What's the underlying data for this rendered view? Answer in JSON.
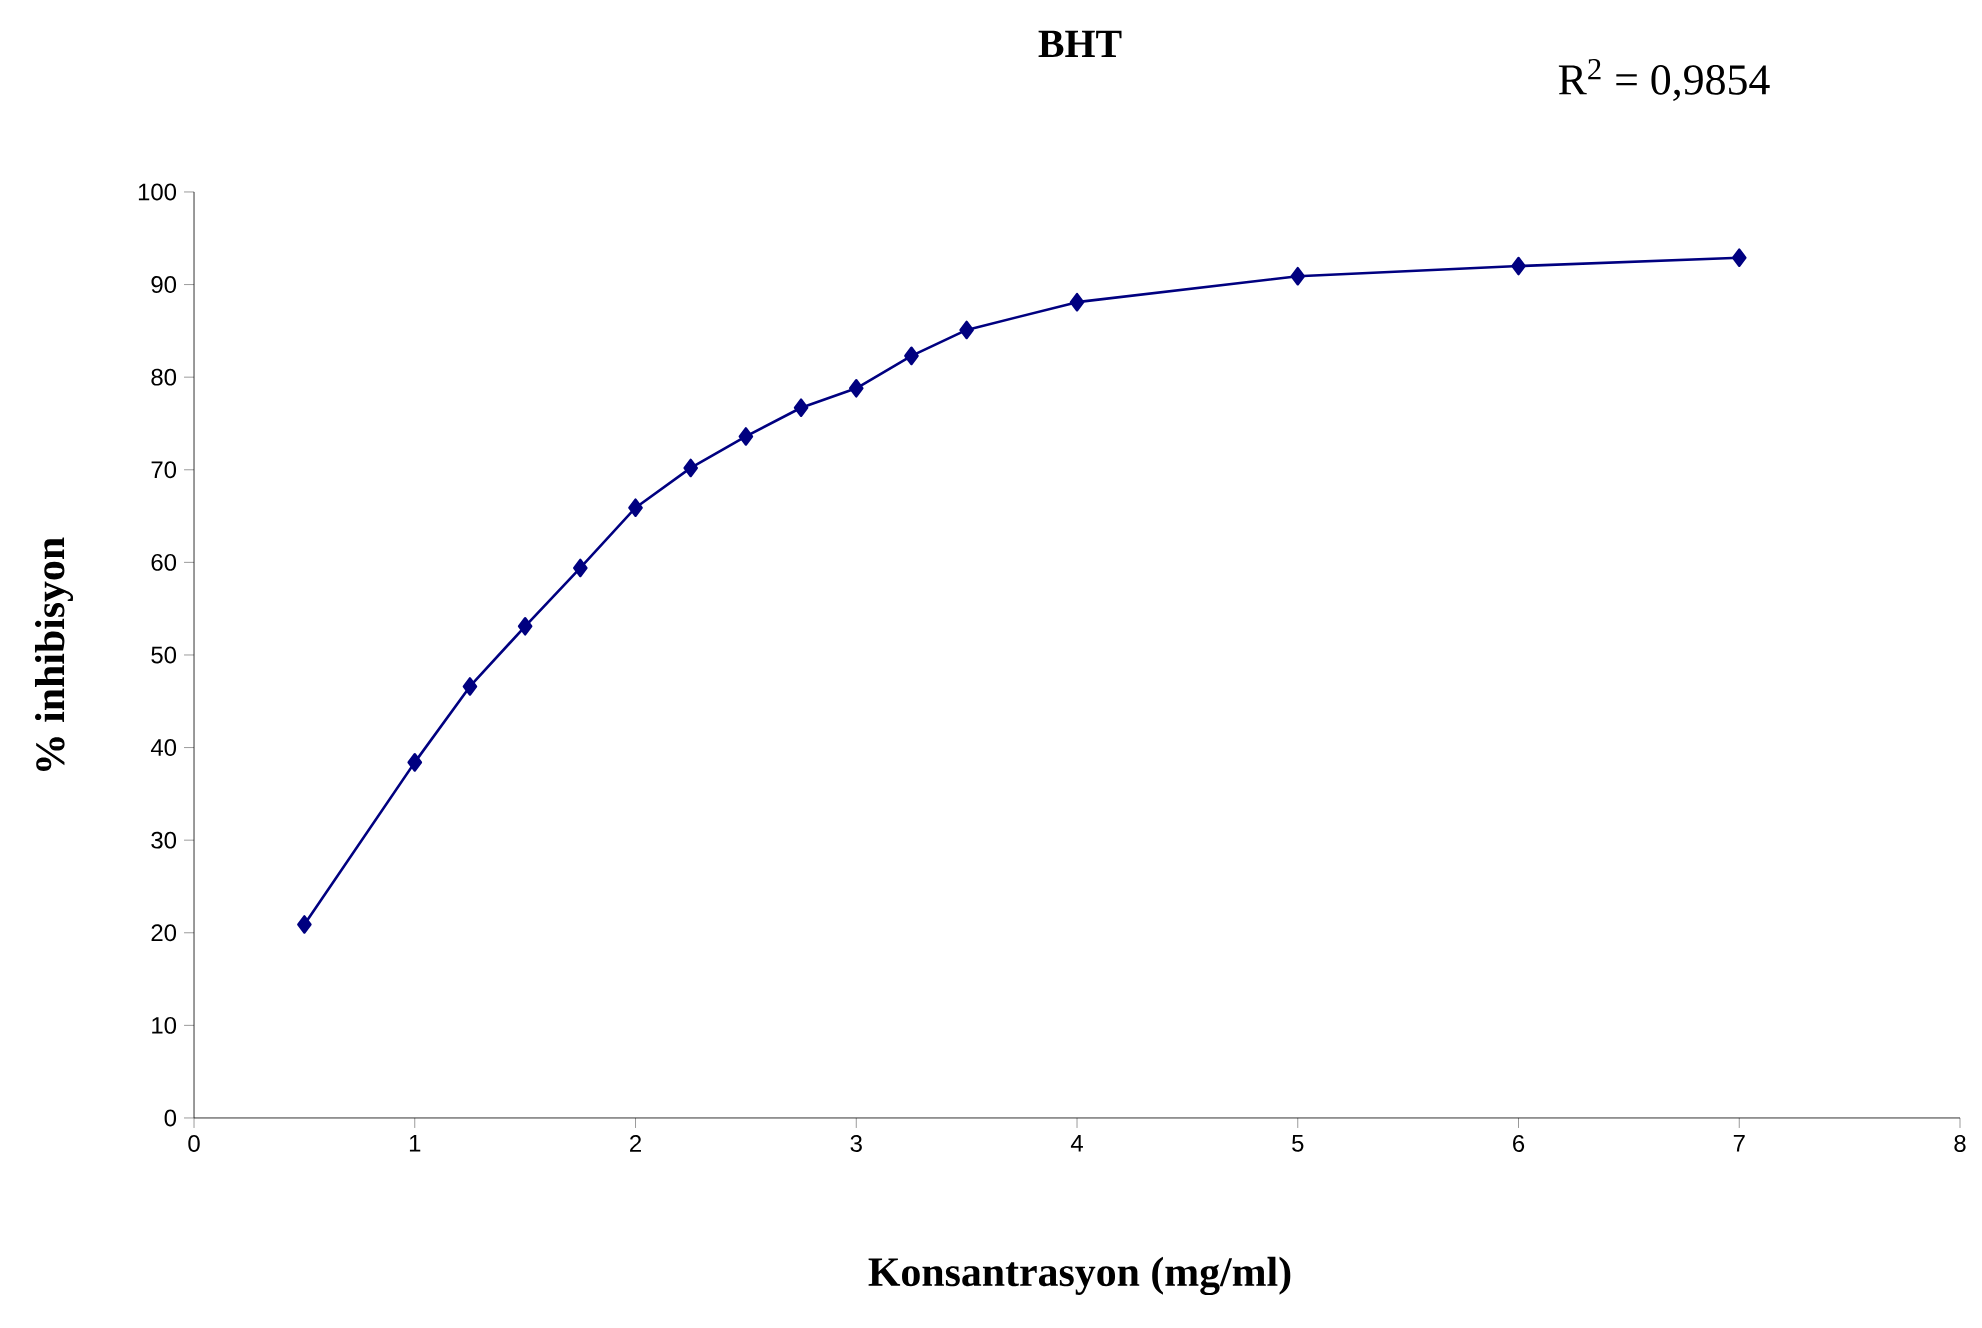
{
  "chart_data": {
    "type": "line",
    "title": "BHT",
    "xlabel": "Konsantrasyon (mg/ml)",
    "ylabel": "% inhibisyon",
    "annotations": [
      "R$^{2}$ = 0,9854"
    ],
    "x": [
      0.5,
      1,
      1.25,
      1.5,
      1.75,
      2,
      2.25,
      2.5,
      2.75,
      3,
      3.25,
      3.5,
      4,
      5,
      6,
      7
    ],
    "series": [
      {
        "color": "#000080",
        "values": [
          20.9,
          38.4,
          46.6,
          53.1,
          59.4,
          65.9,
          70.2,
          73.6,
          76.7,
          78.8,
          82.3,
          85.1,
          88.1,
          90.9,
          92.0,
          92.9
        ]
      }
    ],
    "xlim": [
      0,
      8
    ],
    "xticks": [
      0,
      1,
      2,
      3,
      4,
      5,
      6,
      7,
      8
    ],
    "ylim": [
      0,
      100
    ],
    "yticks": [
      0,
      10,
      20,
      30,
      40,
      50,
      60,
      70,
      80,
      90,
      100
    ],
    "grid": false,
    "marker": "diamond",
    "line_style": "solid"
  }
}
